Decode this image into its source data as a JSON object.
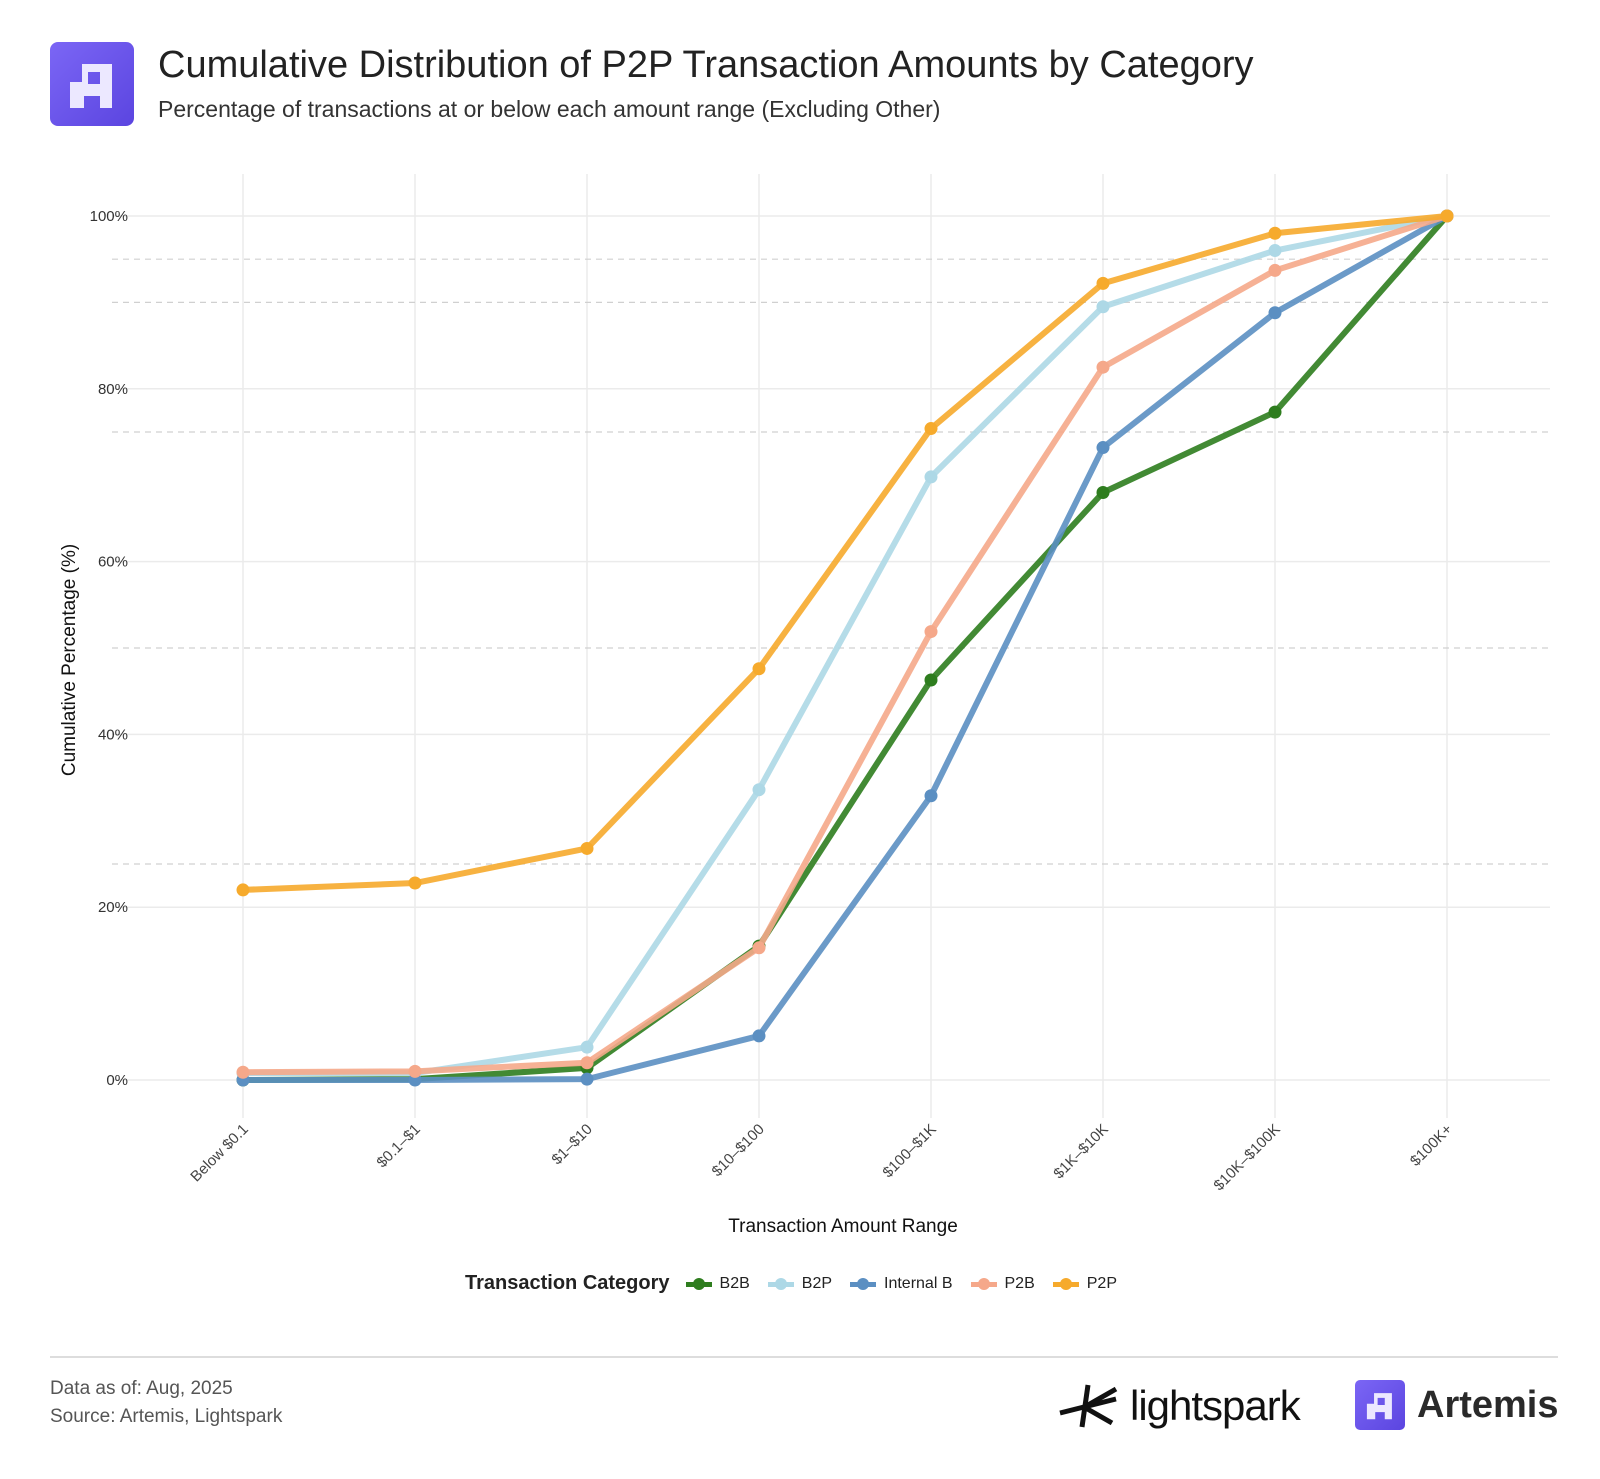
{
  "header": {
    "title": "Cumulative Distribution of P2P Transaction Amounts by Category",
    "subtitle": "Percentage of transactions at or below each amount range (Excluding Other)",
    "logo_icon": "artemis-logo-icon"
  },
  "chart_data": {
    "type": "line",
    "xlabel": "Transaction Amount Range",
    "ylabel": "Cumulative Percentage (%)",
    "categories": [
      "Below $0.1",
      "$0.1–$1",
      "$1–$10",
      "$10–$100",
      "$100–$1K",
      "$1K–$10K",
      "$10K–$100K",
      "$100K+"
    ],
    "ylim": [
      -5,
      105
    ],
    "yticks": [
      0,
      20,
      40,
      60,
      80,
      100
    ],
    "ytick_labels": [
      "0%",
      "20%",
      "40%",
      "60%",
      "80%",
      "100%"
    ],
    "dashed_reference_lines": [
      25,
      50,
      75,
      90,
      95
    ],
    "grid": true,
    "legend_title": "Transaction Category",
    "legend_position": "bottom",
    "series": [
      {
        "name": "B2B",
        "color": "#2e7d1e",
        "values": [
          0.0,
          0.1,
          1.4,
          15.5,
          46.3,
          68.0,
          77.3,
          100
        ]
      },
      {
        "name": "B2P",
        "color": "#add8e6",
        "values": [
          0.8,
          0.8,
          3.8,
          33.6,
          69.8,
          89.5,
          96.0,
          100
        ]
      },
      {
        "name": "Internal B",
        "color": "#5b8fc2",
        "values": [
          0.0,
          0.0,
          0.1,
          5.1,
          32.9,
          73.2,
          88.8,
          100
        ]
      },
      {
        "name": "P2B",
        "color": "#f5a88a",
        "values": [
          0.9,
          1.0,
          2.0,
          15.3,
          51.9,
          82.5,
          93.7,
          100
        ]
      },
      {
        "name": "P2P",
        "color": "#f6aa2c",
        "values": [
          22.0,
          22.8,
          26.8,
          47.6,
          75.4,
          92.2,
          98.0,
          100
        ]
      }
    ]
  },
  "footer": {
    "data_as_of": "Data as of: Aug, 2025",
    "source": "Source: Artemis, Lightspark",
    "brand_1": "lightspark",
    "brand_2": "Artemis"
  }
}
